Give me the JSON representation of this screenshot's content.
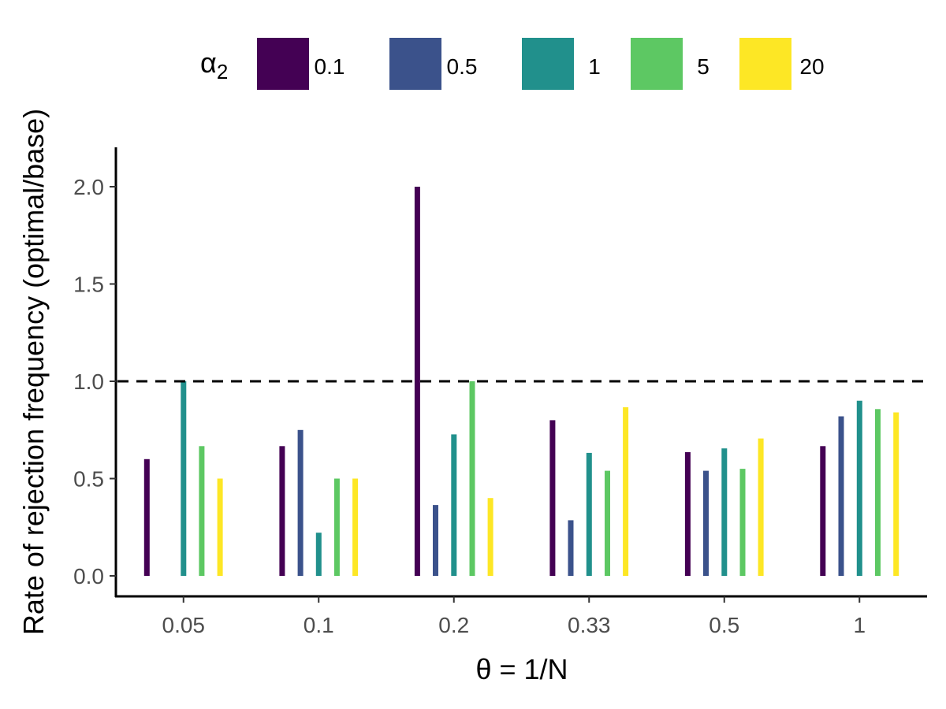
{
  "chart_data": {
    "type": "bar",
    "xlabel": "θ = 1/N",
    "ylabel": "Rate of rejection frequency (optimal/base)",
    "categories": [
      "0.05",
      "0.1",
      "0.2",
      "0.33",
      "0.5",
      "1"
    ],
    "ylim": [
      -0.1,
      2.2
    ],
    "y_ticks": [
      "0.0",
      "0.5",
      "1.0",
      "1.5",
      "2.0"
    ],
    "y_tick_values": [
      0,
      0.5,
      1.0,
      1.5,
      2.0
    ],
    "reference_line": {
      "y": 1.0,
      "style": "dashed",
      "color": "#000000"
    },
    "legend": {
      "title_symbol": "α",
      "title_subscript": "2",
      "position": "top",
      "entries": [
        "0.1",
        "0.5",
        "1",
        "5",
        "20"
      ]
    },
    "series": [
      {
        "name": "0.1",
        "color": "#440154",
        "values": [
          0.6,
          0.667,
          2.0,
          0.8,
          0.636,
          0.667
        ]
      },
      {
        "name": "0.5",
        "color": "#3B528B",
        "values": [
          null,
          0.75,
          0.364,
          0.286,
          0.54,
          0.82
        ]
      },
      {
        "name": "1",
        "color": "#21908C",
        "values": [
          1.0,
          0.222,
          0.727,
          0.632,
          0.655,
          0.9
        ]
      },
      {
        "name": "5",
        "color": "#5DC863",
        "values": [
          0.667,
          0.5,
          1.0,
          0.54,
          0.55,
          0.857
        ]
      },
      {
        "name": "20",
        "color": "#FDE725",
        "values": [
          0.5,
          0.5,
          0.4,
          0.867,
          0.706,
          0.84
        ]
      }
    ],
    "grid": false
  }
}
